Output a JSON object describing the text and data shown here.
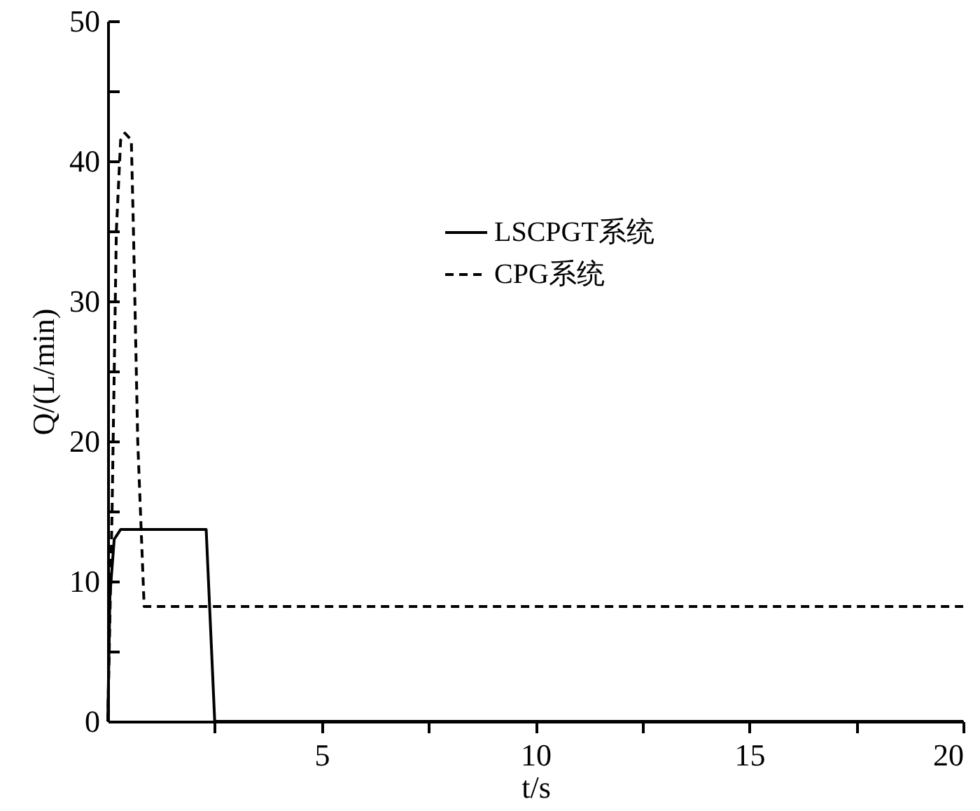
{
  "chart_data": {
    "type": "line",
    "xlabel": "t/s",
    "ylabel": "Q/(L/min)",
    "xlim": [
      0,
      20
    ],
    "xticks": [
      {
        "value": 2.5,
        "label": null
      },
      5,
      {
        "value": 7.5,
        "label": null
      },
      10,
      {
        "value": 12.5,
        "label": null
      },
      15,
      {
        "value": 17.5,
        "label": null
      },
      20
    ],
    "ylim": [
      0,
      50
    ],
    "yticks": [
      0,
      {
        "value": 5,
        "label": null
      },
      10,
      {
        "value": 15,
        "label": null
      },
      20,
      {
        "value": 25,
        "label": null
      },
      30,
      {
        "value": 35,
        "label": null
      },
      40,
      {
        "value": 45,
        "label": null
      },
      50
    ],
    "grid": false,
    "legend": "top right",
    "marker": "none",
    "series": [
      {
        "name": "LSCPGT系统",
        "color": "#000000",
        "line_style": "solid",
        "x": [
          0,
          0.05,
          0.15,
          0.3,
          2.3,
          2.5,
          20
        ],
        "values": [
          0,
          9,
          13,
          13.7,
          13.7,
          0,
          0
        ]
      },
      {
        "name": "CPG系统",
        "color": "#000000",
        "line_style": "dashed",
        "x": [
          0,
          0.1,
          0.2,
          0.3,
          0.4,
          0.55,
          0.6,
          0.7,
          0.85,
          20
        ],
        "values": [
          0,
          15,
          35,
          41.5,
          42,
          41.5,
          35,
          20,
          8.2,
          8.2
        ]
      }
    ]
  }
}
